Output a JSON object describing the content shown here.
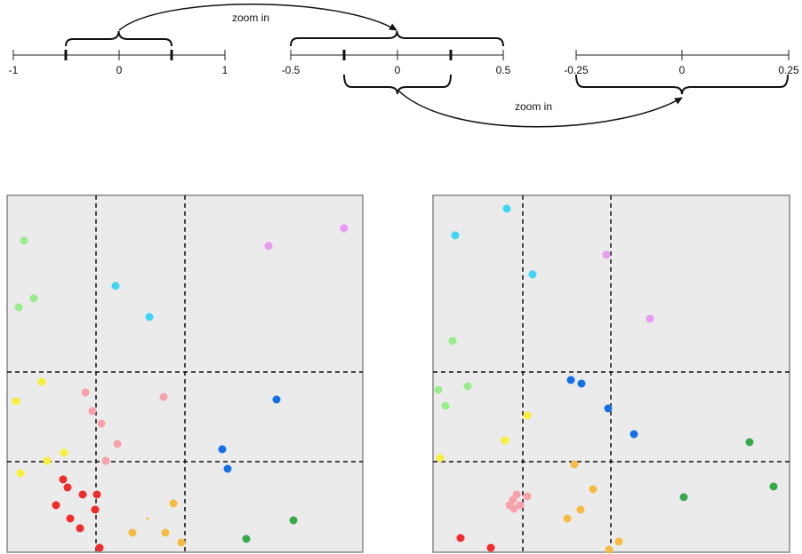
{
  "axes": [
    {
      "ticks": [
        "-1",
        "0",
        "1"
      ]
    },
    {
      "ticks": [
        "-0.5",
        "0",
        "0.5"
      ]
    },
    {
      "ticks": [
        "-0.25",
        "0",
        "0.25"
      ]
    }
  ],
  "annotations": [
    "zoom in",
    "zoom in"
  ]
}
